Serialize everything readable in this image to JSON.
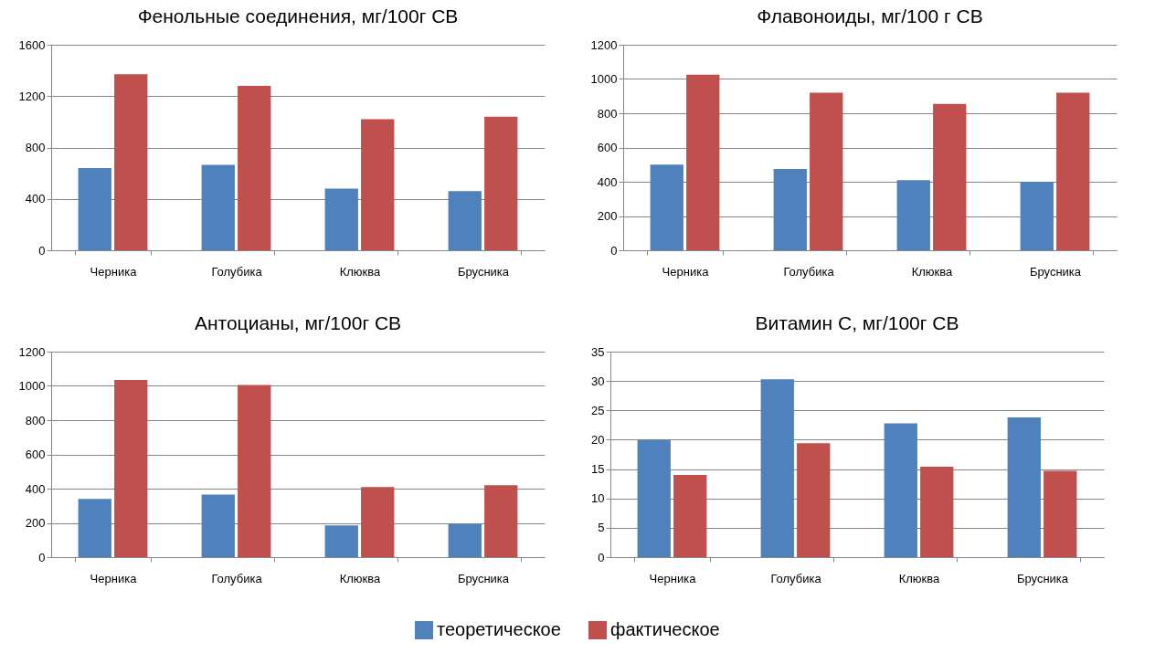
{
  "chart_data": [
    {
      "type": "bar",
      "title": "Фенольные соединения, мг/100г СВ",
      "categories": [
        "Черника",
        "Голубика",
        "Клюква",
        "Брусника"
      ],
      "series": [
        {
          "name": "теоретическое",
          "color": "#4f81bd",
          "values": [
            640,
            665,
            480,
            460
          ]
        },
        {
          "name": "фактическое",
          "color": "#c0504d",
          "values": [
            1370,
            1280,
            1020,
            1040
          ]
        }
      ],
      "ylim": [
        0,
        1600
      ],
      "yticks": [
        0,
        400,
        800,
        1200,
        1600
      ],
      "grid": "y",
      "legend": "bottom"
    },
    {
      "type": "bar",
      "title": "Флавоноиды, мг/100 г СВ",
      "categories": [
        "Черника",
        "Голубика",
        "Клюква",
        "Брусника"
      ],
      "series": [
        {
          "name": "теоретическое",
          "color": "#4f81bd",
          "values": [
            500,
            475,
            410,
            400
          ]
        },
        {
          "name": "фактическое",
          "color": "#c0504d",
          "values": [
            1025,
            920,
            855,
            920
          ]
        }
      ],
      "ylim": [
        0,
        1200
      ],
      "yticks": [
        0,
        200,
        400,
        600,
        800,
        1000,
        1200
      ],
      "grid": "y",
      "legend": "bottom"
    },
    {
      "type": "bar",
      "title": "Антоцианы, мг/100г СВ",
      "categories": [
        "Черника",
        "Голубика",
        "Клюква",
        "Брусника"
      ],
      "series": [
        {
          "name": "теоретическое",
          "color": "#4f81bd",
          "values": [
            340,
            365,
            185,
            195
          ]
        },
        {
          "name": "фактическое",
          "color": "#c0504d",
          "values": [
            1035,
            1005,
            410,
            420
          ]
        }
      ],
      "ylim": [
        0,
        1200
      ],
      "yticks": [
        0,
        200,
        400,
        600,
        800,
        1000,
        1200
      ],
      "grid": "y",
      "legend": "bottom"
    },
    {
      "type": "bar",
      "title": "Витамин С, мг/100г СВ",
      "categories": [
        "Черника",
        "Голубика",
        "Клюква",
        "Брусника"
      ],
      "series": [
        {
          "name": "теоретическое",
          "color": "#4f81bd",
          "values": [
            20,
            30.3,
            22.8,
            23.8
          ]
        },
        {
          "name": "фактическое",
          "color": "#c0504d",
          "values": [
            14,
            19.4,
            15.4,
            14.7
          ]
        }
      ],
      "ylim": [
        0,
        35
      ],
      "yticks": [
        0,
        5,
        10,
        15,
        20,
        25,
        30,
        35
      ],
      "grid": "y",
      "legend": "bottom"
    }
  ]
}
